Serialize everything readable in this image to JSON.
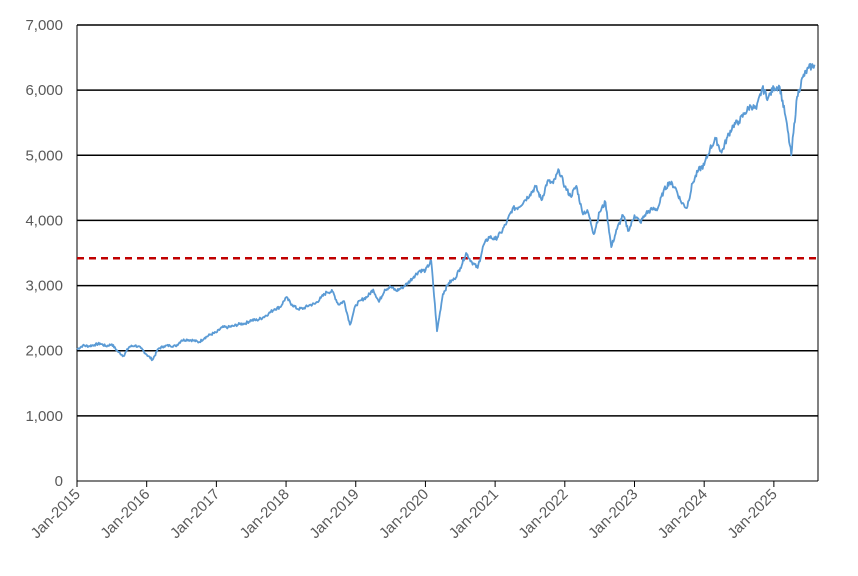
{
  "chart_data": {
    "type": "line",
    "title": "",
    "xlabel": "",
    "ylabel": "",
    "ylim": [
      0,
      7000
    ],
    "yticks": [
      0,
      1000,
      2000,
      3000,
      4000,
      5000,
      6000,
      7000
    ],
    "ytick_labels": [
      "0",
      "1,000",
      "2,000",
      "3,000",
      "4,000",
      "5,000",
      "6,000",
      "7,000"
    ],
    "xlim": [
      "2015-01",
      "2025-08"
    ],
    "xticks": [
      "2015-01",
      "2016-01",
      "2017-01",
      "2018-01",
      "2019-01",
      "2020-01",
      "2021-01",
      "2022-01",
      "2023-01",
      "2024-01",
      "2025-01"
    ],
    "xtick_labels": [
      "Jan-2015",
      "Jan-2016",
      "Jan-2017",
      "Jan-2018",
      "Jan-2019",
      "Jan-2020",
      "Jan-2021",
      "Jan-2022",
      "Jan-2023",
      "Jan-2024",
      "Jan-2025"
    ],
    "grid": "horizontal",
    "series": [
      {
        "color": "#5B9BD5",
        "points": [
          [
            "2015-01",
            2020
          ],
          [
            "2015-02",
            2080
          ],
          [
            "2015-03",
            2070
          ],
          [
            "2015-04",
            2090
          ],
          [
            "2015-05",
            2110
          ],
          [
            "2015-06",
            2070
          ],
          [
            "2015-07",
            2100
          ],
          [
            "2015-08",
            1990
          ],
          [
            "2015-09",
            1920
          ],
          [
            "2015-10",
            2060
          ],
          [
            "2015-11",
            2080
          ],
          [
            "2015-12",
            2040
          ],
          [
            "2016-01",
            1940
          ],
          [
            "2016-02",
            1860
          ],
          [
            "2016-03",
            2030
          ],
          [
            "2016-04",
            2070
          ],
          [
            "2016-05",
            2080
          ],
          [
            "2016-06",
            2070
          ],
          [
            "2016-07",
            2160
          ],
          [
            "2016-08",
            2170
          ],
          [
            "2016-09",
            2160
          ],
          [
            "2016-10",
            2130
          ],
          [
            "2016-11",
            2200
          ],
          [
            "2016-12",
            2250
          ],
          [
            "2017-01",
            2280
          ],
          [
            "2017-02",
            2360
          ],
          [
            "2017-03",
            2360
          ],
          [
            "2017-04",
            2380
          ],
          [
            "2017-05",
            2410
          ],
          [
            "2017-06",
            2420
          ],
          [
            "2017-07",
            2470
          ],
          [
            "2017-08",
            2470
          ],
          [
            "2017-09",
            2510
          ],
          [
            "2017-10",
            2570
          ],
          [
            "2017-11",
            2640
          ],
          [
            "2017-12",
            2670
          ],
          [
            "2018-01",
            2820
          ],
          [
            "2018-02",
            2710
          ],
          [
            "2018-03",
            2640
          ],
          [
            "2018-04",
            2650
          ],
          [
            "2018-05",
            2700
          ],
          [
            "2018-06",
            2720
          ],
          [
            "2018-07",
            2810
          ],
          [
            "2018-08",
            2900
          ],
          [
            "2018-09",
            2910
          ],
          [
            "2018-10",
            2710
          ],
          [
            "2018-11",
            2760
          ],
          [
            "2018-12",
            2400
          ],
          [
            "2019-01",
            2700
          ],
          [
            "2019-02",
            2780
          ],
          [
            "2019-03",
            2830
          ],
          [
            "2019-04",
            2940
          ],
          [
            "2019-05",
            2750
          ],
          [
            "2019-06",
            2940
          ],
          [
            "2019-07",
            2980
          ],
          [
            "2019-08",
            2920
          ],
          [
            "2019-09",
            2970
          ],
          [
            "2019-10",
            3040
          ],
          [
            "2019-11",
            3140
          ],
          [
            "2019-12",
            3230
          ],
          [
            "2020-01",
            3230
          ],
          [
            "2020-02",
            3380
          ],
          [
            "2020-03",
            2300
          ],
          [
            "2020-04",
            2870
          ],
          [
            "2020-05",
            3040
          ],
          [
            "2020-06",
            3100
          ],
          [
            "2020-07",
            3270
          ],
          [
            "2020-08",
            3500
          ],
          [
            "2020-09",
            3360
          ],
          [
            "2020-10",
            3270
          ],
          [
            "2020-11",
            3620
          ],
          [
            "2020-12",
            3750
          ],
          [
            "2021-01",
            3710
          ],
          [
            "2021-02",
            3810
          ],
          [
            "2021-03",
            3970
          ],
          [
            "2021-04",
            4180
          ],
          [
            "2021-05",
            4200
          ],
          [
            "2021-06",
            4300
          ],
          [
            "2021-07",
            4400
          ],
          [
            "2021-08",
            4520
          ],
          [
            "2021-09",
            4310
          ],
          [
            "2021-10",
            4600
          ],
          [
            "2021-11",
            4570
          ],
          [
            "2021-12",
            4770
          ],
          [
            "2022-01",
            4520
          ],
          [
            "2022-02",
            4370
          ],
          [
            "2022-03",
            4530
          ],
          [
            "2022-04",
            4130
          ],
          [
            "2022-05",
            4130
          ],
          [
            "2022-06",
            3790
          ],
          [
            "2022-07",
            4130
          ],
          [
            "2022-08",
            4280
          ],
          [
            "2022-09",
            3590
          ],
          [
            "2022-10",
            3870
          ],
          [
            "2022-11",
            4080
          ],
          [
            "2022-12",
            3840
          ],
          [
            "2023-01",
            4080
          ],
          [
            "2023-02",
            3970
          ],
          [
            "2023-03",
            4110
          ],
          [
            "2023-04",
            4170
          ],
          [
            "2023-05",
            4180
          ],
          [
            "2023-06",
            4450
          ],
          [
            "2023-07",
            4590
          ],
          [
            "2023-08",
            4510
          ],
          [
            "2023-09",
            4290
          ],
          [
            "2023-10",
            4190
          ],
          [
            "2023-11",
            4570
          ],
          [
            "2023-12",
            4770
          ],
          [
            "2024-01",
            4850
          ],
          [
            "2024-02",
            5100
          ],
          [
            "2024-03",
            5250
          ],
          [
            "2024-04",
            5040
          ],
          [
            "2024-05",
            5280
          ],
          [
            "2024-06",
            5460
          ],
          [
            "2024-07",
            5520
          ],
          [
            "2024-08",
            5650
          ],
          [
            "2024-09",
            5760
          ],
          [
            "2024-10",
            5710
          ],
          [
            "2024-11",
            6030
          ],
          [
            "2024-12",
            5880
          ],
          [
            "2025-01",
            6040
          ],
          [
            "2025-02",
            6050
          ],
          [
            "2025-03",
            5600
          ],
          [
            "2025-04",
            5000
          ],
          [
            "2025-05",
            5900
          ],
          [
            "2025-06",
            6200
          ],
          [
            "2025-07",
            6340
          ],
          [
            "2025-08",
            6390
          ]
        ]
      }
    ],
    "reference_line": {
      "value": 3420,
      "color": "#C00000",
      "style": "dashed"
    }
  }
}
